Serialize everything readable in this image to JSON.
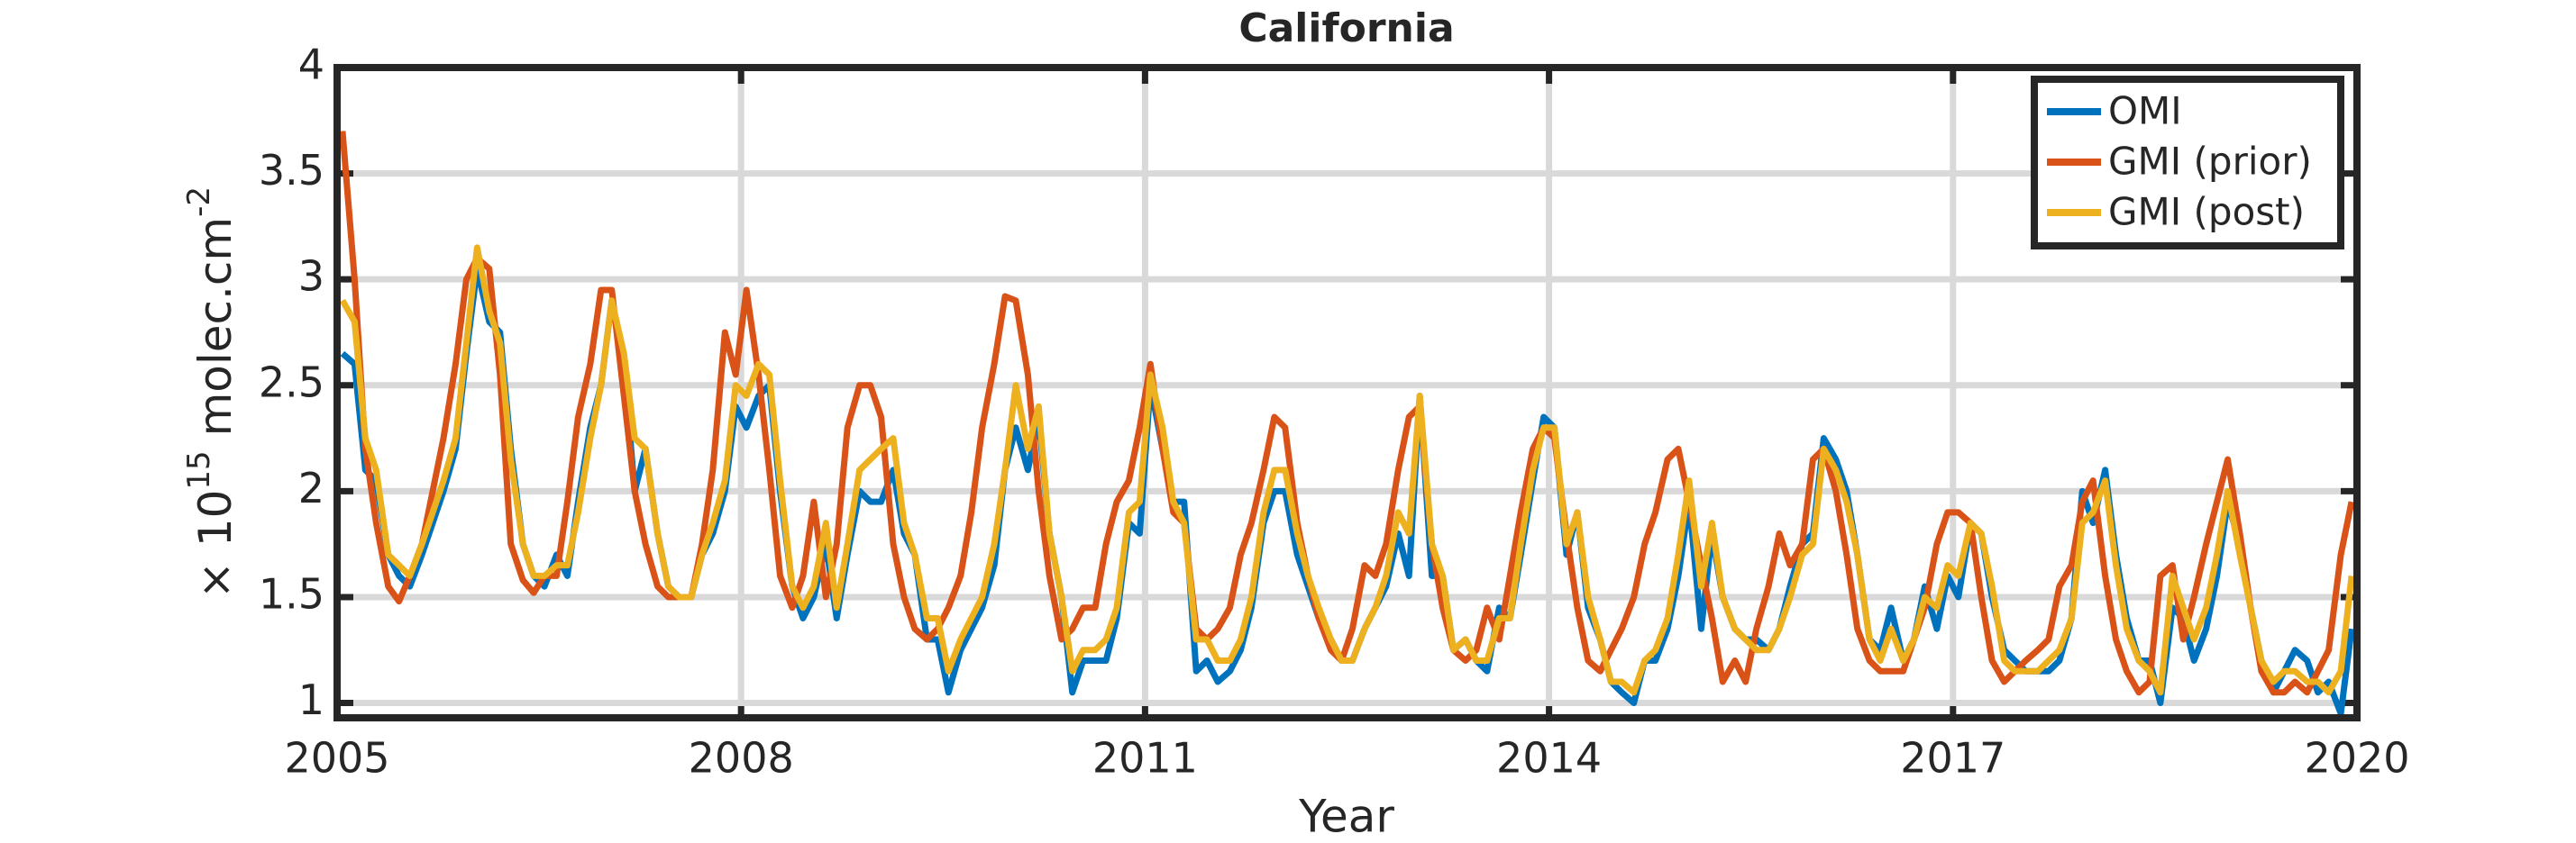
{
  "chart_data": {
    "type": "line",
    "title": "California",
    "xlabel": "Year",
    "ylabel": [
      "× 10",
      "15",
      " molec.cm",
      "-2"
    ],
    "xlim": [
      2005,
      2020
    ],
    "xticks": [
      2005,
      2008,
      2011,
      2014,
      2017,
      2020
    ],
    "ylim": [
      0.93,
      4
    ],
    "yticks": [
      1,
      1.5,
      2,
      2.5,
      3,
      3.5,
      4
    ],
    "grid": true,
    "legend": "upper right",
    "x": [
      2005.04,
      2005.13,
      2005.21,
      2005.29,
      2005.38,
      2005.46,
      2005.54,
      2005.63,
      2005.71,
      2005.79,
      2005.88,
      2005.96,
      2006.04,
      2006.13,
      2006.21,
      2006.29,
      2006.38,
      2006.46,
      2006.54,
      2006.63,
      2006.71,
      2006.79,
      2006.88,
      2006.96,
      2007.04,
      2007.13,
      2007.21,
      2007.29,
      2007.38,
      2007.46,
      2007.54,
      2007.63,
      2007.71,
      2007.79,
      2007.88,
      2007.96,
      2008.04,
      2008.13,
      2008.21,
      2008.29,
      2008.38,
      2008.46,
      2008.54,
      2008.63,
      2008.71,
      2008.79,
      2008.88,
      2008.96,
      2009.04,
      2009.13,
      2009.21,
      2009.29,
      2009.38,
      2009.46,
      2009.54,
      2009.63,
      2009.71,
      2009.79,
      2009.88,
      2009.96,
      2010.04,
      2010.13,
      2010.21,
      2010.29,
      2010.38,
      2010.46,
      2010.54,
      2010.63,
      2010.71,
      2010.79,
      2010.88,
      2010.96,
      2011.04,
      2011.13,
      2011.21,
      2011.29,
      2011.38,
      2011.46,
      2011.54,
      2011.63,
      2011.71,
      2011.79,
      2011.88,
      2011.96,
      2012.04,
      2012.13,
      2012.21,
      2012.29,
      2012.38,
      2012.46,
      2012.54,
      2012.63,
      2012.71,
      2012.79,
      2012.88,
      2012.96,
      2013.04,
      2013.13,
      2013.21,
      2013.29,
      2013.38,
      2013.46,
      2013.54,
      2013.63,
      2013.71,
      2013.79,
      2013.88,
      2013.96,
      2014.04,
      2014.13,
      2014.21,
      2014.29,
      2014.38,
      2014.46,
      2014.54,
      2014.63,
      2014.71,
      2014.79,
      2014.88,
      2014.96,
      2015.04,
      2015.13,
      2015.21,
      2015.29,
      2015.38,
      2015.46,
      2015.54,
      2015.63,
      2015.71,
      2015.79,
      2015.88,
      2015.96,
      2016.04,
      2016.13,
      2016.21,
      2016.29,
      2016.38,
      2016.46,
      2016.54,
      2016.63,
      2016.71,
      2016.79,
      2016.88,
      2016.96,
      2017.04,
      2017.13,
      2017.21,
      2017.29,
      2017.38,
      2017.46,
      2017.54,
      2017.63,
      2017.71,
      2017.79,
      2017.88,
      2017.96,
      2018.04,
      2018.13,
      2018.21,
      2018.29,
      2018.38,
      2018.46,
      2018.54,
      2018.63,
      2018.71,
      2018.79,
      2018.88,
      2018.96,
      2019.04,
      2019.13,
      2019.21,
      2019.29,
      2019.38,
      2019.46,
      2019.54,
      2019.63,
      2019.71,
      2019.79,
      2019.88,
      2019.96
    ],
    "series": [
      {
        "name": "OMI",
        "color": "#0072bd",
        "values": [
          2.65,
          2.6,
          2.1,
          2.05,
          1.7,
          1.6,
          1.55,
          1.7,
          1.85,
          2.0,
          2.2,
          2.65,
          3.05,
          2.8,
          2.75,
          2.2,
          1.75,
          1.6,
          1.55,
          1.7,
          1.6,
          1.95,
          2.3,
          2.5,
          2.9,
          2.6,
          2.0,
          2.2,
          1.8,
          1.55,
          1.5,
          1.5,
          1.7,
          1.8,
          2.0,
          2.4,
          2.3,
          2.45,
          2.5,
          2.0,
          1.55,
          1.4,
          1.5,
          1.75,
          1.4,
          1.7,
          2.0,
          1.95,
          1.95,
          2.1,
          1.8,
          1.7,
          1.3,
          1.3,
          1.05,
          1.25,
          1.35,
          1.45,
          1.65,
          2.1,
          2.3,
          2.1,
          2.35,
          1.8,
          1.5,
          1.05,
          1.2,
          1.2,
          1.2,
          1.4,
          1.85,
          1.8,
          2.5,
          2.2,
          1.95,
          1.95,
          1.15,
          1.2,
          1.1,
          1.15,
          1.25,
          1.45,
          1.85,
          2.0,
          2.0,
          1.7,
          1.55,
          1.4,
          1.3,
          1.2,
          1.2,
          1.35,
          1.45,
          1.55,
          1.8,
          1.6,
          2.45,
          1.6,
          1.6,
          1.25,
          1.3,
          1.2,
          1.15,
          1.45,
          1.4,
          1.7,
          2.05,
          2.35,
          2.3,
          1.7,
          1.9,
          1.45,
          1.3,
          1.1,
          1.05,
          1.0,
          1.2,
          1.2,
          1.35,
          1.6,
          1.95,
          1.35,
          1.8,
          1.5,
          1.35,
          1.3,
          1.3,
          1.25,
          1.35,
          1.55,
          1.75,
          1.8,
          2.25,
          2.15,
          2.0,
          1.7,
          1.3,
          1.25,
          1.45,
          1.2,
          1.3,
          1.55,
          1.35,
          1.6,
          1.5,
          1.85,
          1.8,
          1.5,
          1.25,
          1.2,
          1.15,
          1.15,
          1.15,
          1.2,
          1.4,
          2.0,
          1.85,
          2.1,
          1.7,
          1.4,
          1.2,
          1.2,
          1.0,
          1.45,
          1.4,
          1.2,
          1.35,
          1.6,
          1.95,
          1.75,
          1.45,
          1.2,
          1.05,
          1.15,
          1.25,
          1.2,
          1.05,
          1.1,
          0.95,
          1.35
        ]
      },
      {
        "name": "GMI (prior)",
        "color": "#d95319",
        "values": [
          3.7,
          3.0,
          2.2,
          1.85,
          1.55,
          1.48,
          1.6,
          1.75,
          2.0,
          2.25,
          2.6,
          3.0,
          3.1,
          3.05,
          2.55,
          1.75,
          1.58,
          1.52,
          1.6,
          1.6,
          1.95,
          2.35,
          2.6,
          2.95,
          2.95,
          2.45,
          2.0,
          1.75,
          1.55,
          1.5,
          1.5,
          1.5,
          1.75,
          2.1,
          2.75,
          2.55,
          2.95,
          2.55,
          2.1,
          1.6,
          1.45,
          1.6,
          1.95,
          1.5,
          1.75,
          2.3,
          2.5,
          2.5,
          2.35,
          1.75,
          1.5,
          1.35,
          1.3,
          1.35,
          1.45,
          1.6,
          1.9,
          2.3,
          2.6,
          2.92,
          2.9,
          2.55,
          2.0,
          1.6,
          1.3,
          1.35,
          1.45,
          1.45,
          1.75,
          1.95,
          2.05,
          2.3,
          2.6,
          2.2,
          1.9,
          1.85,
          1.35,
          1.3,
          1.35,
          1.45,
          1.7,
          1.85,
          2.1,
          2.35,
          2.3,
          1.85,
          1.6,
          1.4,
          1.25,
          1.2,
          1.35,
          1.65,
          1.6,
          1.75,
          2.1,
          2.35,
          2.4,
          1.75,
          1.45,
          1.25,
          1.2,
          1.25,
          1.45,
          1.3,
          1.6,
          1.9,
          2.2,
          2.3,
          2.25,
          1.8,
          1.45,
          1.2,
          1.15,
          1.25,
          1.35,
          1.5,
          1.75,
          1.9,
          2.15,
          2.2,
          1.95,
          1.65,
          1.4,
          1.1,
          1.2,
          1.1,
          1.35,
          1.55,
          1.8,
          1.65,
          1.75,
          2.15,
          2.2,
          2.0,
          1.7,
          1.35,
          1.2,
          1.15,
          1.15,
          1.15,
          1.3,
          1.45,
          1.75,
          1.9,
          1.9,
          1.85,
          1.5,
          1.2,
          1.1,
          1.15,
          1.2,
          1.25,
          1.3,
          1.55,
          1.65,
          1.95,
          2.05,
          1.6,
          1.3,
          1.15,
          1.05,
          1.1,
          1.6,
          1.65,
          1.3,
          1.5,
          1.75,
          1.95,
          2.15,
          1.8,
          1.45,
          1.15,
          1.05,
          1.05,
          1.1,
          1.05,
          1.15,
          1.25,
          1.7,
          1.95
        ]
      },
      {
        "name": "GMI (post)",
        "color": "#edb120",
        "values": [
          2.9,
          2.8,
          2.25,
          2.1,
          1.7,
          1.65,
          1.6,
          1.75,
          1.9,
          2.05,
          2.25,
          2.7,
          3.15,
          2.85,
          2.7,
          2.15,
          1.75,
          1.6,
          1.6,
          1.65,
          1.65,
          1.9,
          2.25,
          2.5,
          2.9,
          2.65,
          2.25,
          2.2,
          1.8,
          1.55,
          1.5,
          1.5,
          1.7,
          1.85,
          2.05,
          2.5,
          2.45,
          2.6,
          2.55,
          2.05,
          1.55,
          1.45,
          1.55,
          1.85,
          1.45,
          1.75,
          2.1,
          2.15,
          2.2,
          2.25,
          1.85,
          1.7,
          1.4,
          1.4,
          1.15,
          1.3,
          1.4,
          1.5,
          1.75,
          2.1,
          2.5,
          2.2,
          2.4,
          1.8,
          1.5,
          1.15,
          1.25,
          1.25,
          1.3,
          1.45,
          1.9,
          1.95,
          2.55,
          2.3,
          1.95,
          1.85,
          1.3,
          1.3,
          1.2,
          1.2,
          1.3,
          1.5,
          1.9,
          2.1,
          2.1,
          1.8,
          1.6,
          1.45,
          1.3,
          1.2,
          1.2,
          1.35,
          1.45,
          1.6,
          1.9,
          1.8,
          2.45,
          1.75,
          1.6,
          1.25,
          1.3,
          1.2,
          1.2,
          1.4,
          1.4,
          1.75,
          2.1,
          2.3,
          2.3,
          1.75,
          1.9,
          1.5,
          1.3,
          1.1,
          1.1,
          1.05,
          1.2,
          1.25,
          1.4,
          1.7,
          2.05,
          1.55,
          1.85,
          1.5,
          1.35,
          1.3,
          1.25,
          1.25,
          1.35,
          1.5,
          1.7,
          1.75,
          2.2,
          2.1,
          1.95,
          1.7,
          1.3,
          1.2,
          1.35,
          1.2,
          1.3,
          1.5,
          1.45,
          1.65,
          1.6,
          1.85,
          1.8,
          1.55,
          1.2,
          1.15,
          1.15,
          1.15,
          1.2,
          1.25,
          1.4,
          1.85,
          1.9,
          2.05,
          1.65,
          1.35,
          1.2,
          1.15,
          1.05,
          1.6,
          1.45,
          1.3,
          1.45,
          1.7,
          2.0,
          1.7,
          1.45,
          1.2,
          1.1,
          1.15,
          1.15,
          1.1,
          1.1,
          1.05,
          1.15,
          1.6
        ]
      }
    ]
  }
}
